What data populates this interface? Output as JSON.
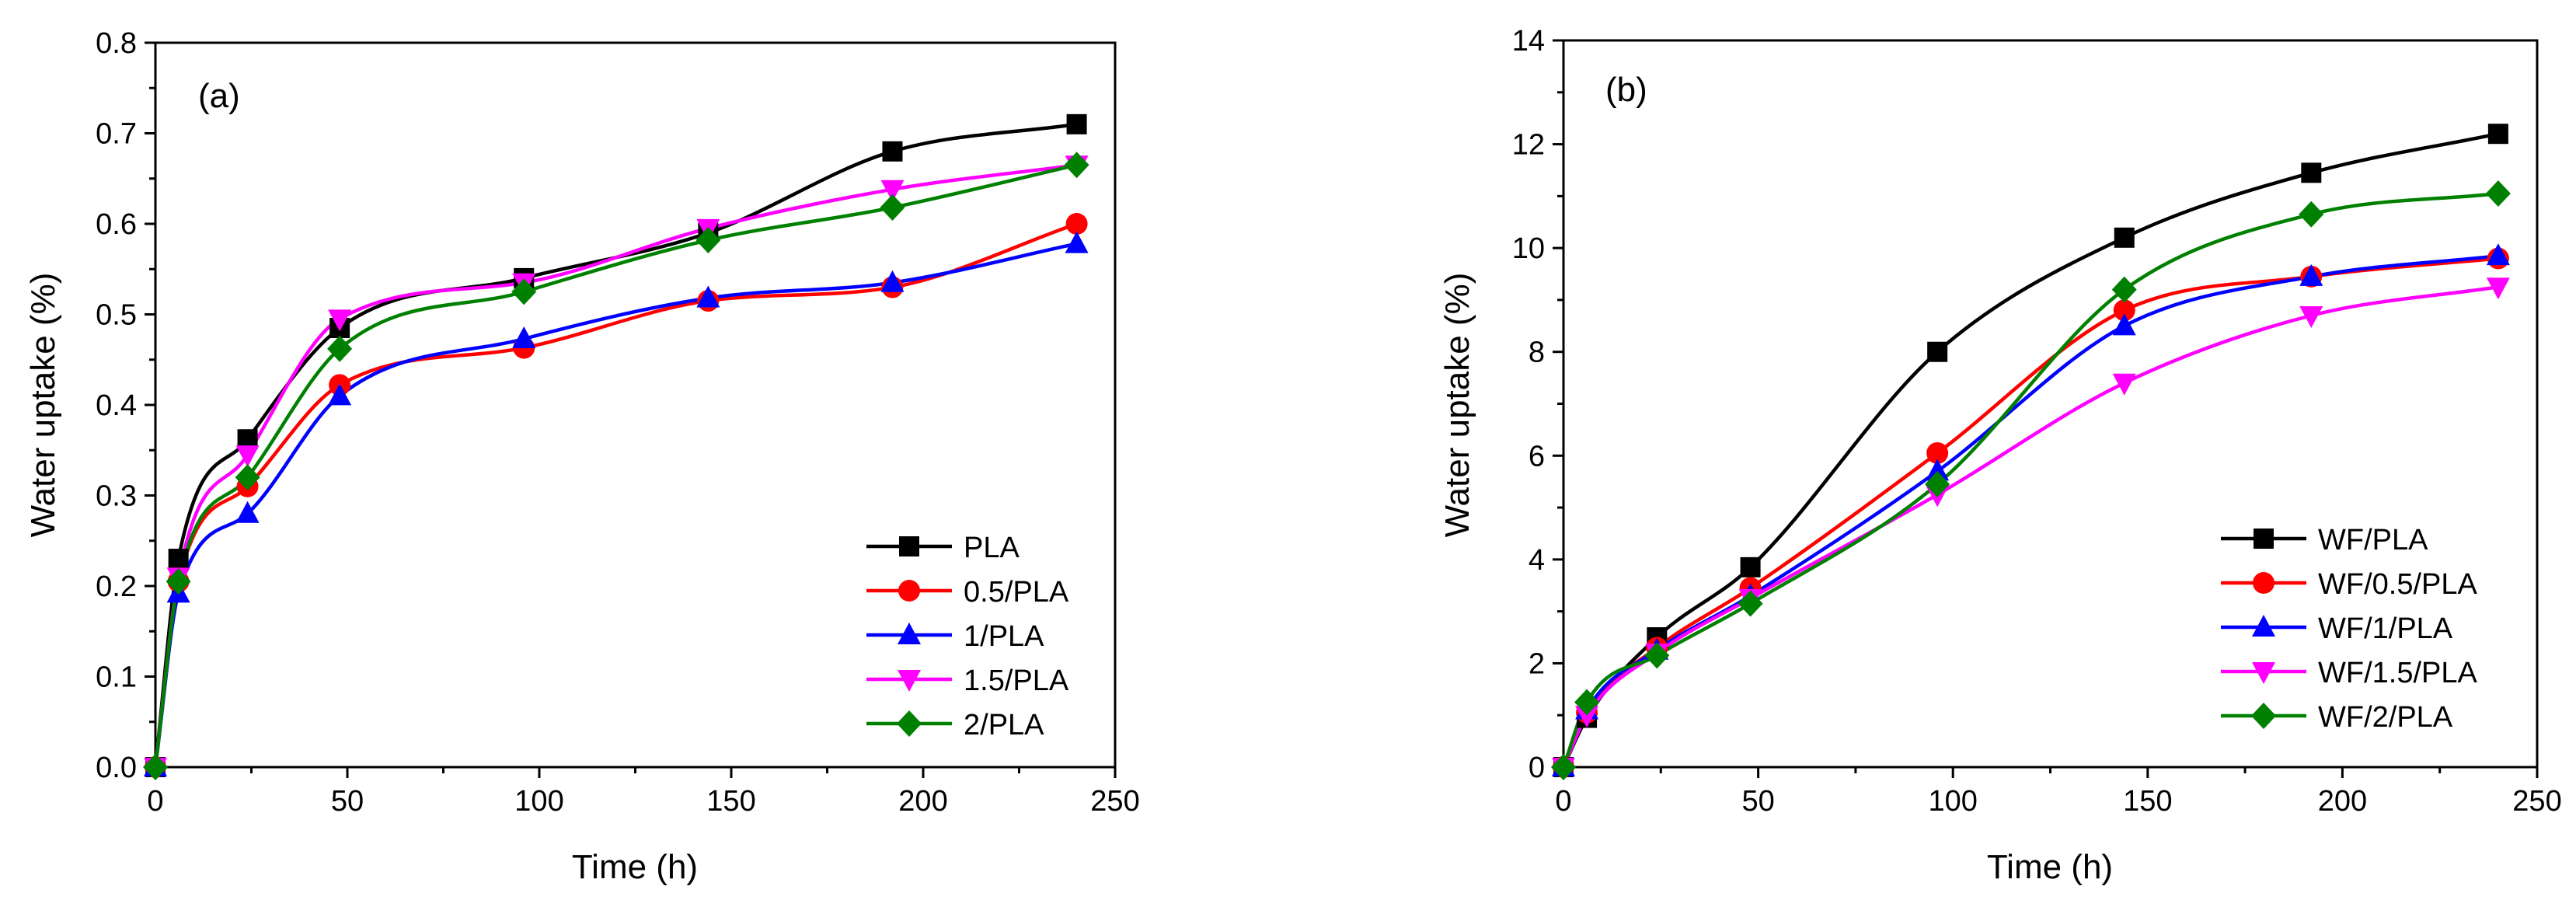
{
  "chart_data": [
    {
      "type": "line",
      "panel_label": "(a)",
      "xlabel": "Time (h)",
      "ylabel": "Water uptake (%)",
      "xlim": [
        0,
        250
      ],
      "ylim": [
        0,
        0.8
      ],
      "xticks": [
        0,
        50,
        100,
        150,
        200,
        250
      ],
      "xtick_labels": [
        "0",
        "50",
        "100",
        "150",
        "200",
        "250"
      ],
      "yticks": [
        0,
        0.1,
        0.2,
        0.3,
        0.4,
        0.5,
        0.6,
        0.7,
        0.8
      ],
      "ytick_labels": [
        "0.0",
        "0.1",
        "0.2",
        "0.3",
        "0.4",
        "0.5",
        "0.6",
        "0.7",
        "0.8"
      ],
      "grid": false,
      "legend_position": "lower-right",
      "x": [
        0,
        6,
        24,
        48,
        96,
        144,
        192,
        240
      ],
      "series": [
        {
          "name": "PLA",
          "marker": "square",
          "color": "#000000",
          "values": [
            0,
            0.23,
            0.362,
            0.485,
            0.54,
            0.59,
            0.68,
            0.71
          ]
        },
        {
          "name": "0.5/PLA",
          "marker": "circle",
          "color": "#ff0000",
          "values": [
            0,
            0.205,
            0.31,
            0.422,
            0.463,
            0.515,
            0.53,
            0.6
          ]
        },
        {
          "name": "1/PLA",
          "marker": "triangle-up",
          "color": "#0000ff",
          "values": [
            0,
            0.192,
            0.28,
            0.41,
            0.473,
            0.518,
            0.535,
            0.578
          ]
        },
        {
          "name": "1.5/PLA",
          "marker": "triangle-down",
          "color": "#ff00ff",
          "values": [
            0,
            0.21,
            0.345,
            0.495,
            0.535,
            0.595,
            0.638,
            0.665
          ]
        },
        {
          "name": "2/PLA",
          "marker": "diamond",
          "color": "#008000",
          "values": [
            0,
            0.205,
            0.32,
            0.462,
            0.525,
            0.582,
            0.618,
            0.665
          ]
        }
      ]
    },
    {
      "type": "line",
      "panel_label": "(b)",
      "xlabel": "Time (h)",
      "ylabel": "Water uptake (%)",
      "xlim": [
        0,
        250
      ],
      "ylim": [
        0,
        14
      ],
      "xticks": [
        0,
        50,
        100,
        150,
        200,
        250
      ],
      "xtick_labels": [
        "0",
        "50",
        "100",
        "150",
        "200",
        "250"
      ],
      "yticks": [
        0,
        2,
        4,
        6,
        8,
        10,
        12,
        14
      ],
      "ytick_labels": [
        "0",
        "2",
        "4",
        "6",
        "8",
        "10",
        "12",
        "14"
      ],
      "grid": false,
      "legend_position": "lower-right",
      "x": [
        0,
        6,
        24,
        48,
        96,
        144,
        192,
        240
      ],
      "series": [
        {
          "name": "WF/PLA",
          "marker": "square",
          "color": "#000000",
          "values": [
            0,
            0.95,
            2.5,
            3.85,
            8.0,
            10.2,
            11.45,
            12.2
          ]
        },
        {
          "name": "WF/0.5/PLA",
          "marker": "circle",
          "color": "#ff0000",
          "values": [
            0,
            1.05,
            2.3,
            3.45,
            6.05,
            8.8,
            9.45,
            9.8
          ]
        },
        {
          "name": "WF/1/PLA",
          "marker": "triangle-up",
          "color": "#0000ff",
          "values": [
            0,
            1.1,
            2.25,
            3.3,
            5.7,
            8.5,
            9.45,
            9.85
          ]
        },
        {
          "name": "WF/1.5/PLA",
          "marker": "triangle-down",
          "color": "#ff00ff",
          "values": [
            0,
            1.0,
            2.2,
            3.25,
            5.25,
            7.4,
            8.7,
            9.25
          ]
        },
        {
          "name": "WF/2/PLA",
          "marker": "diamond",
          "color": "#008000",
          "values": [
            0,
            1.25,
            2.15,
            3.15,
            5.45,
            9.2,
            10.65,
            11.05
          ]
        }
      ]
    }
  ]
}
